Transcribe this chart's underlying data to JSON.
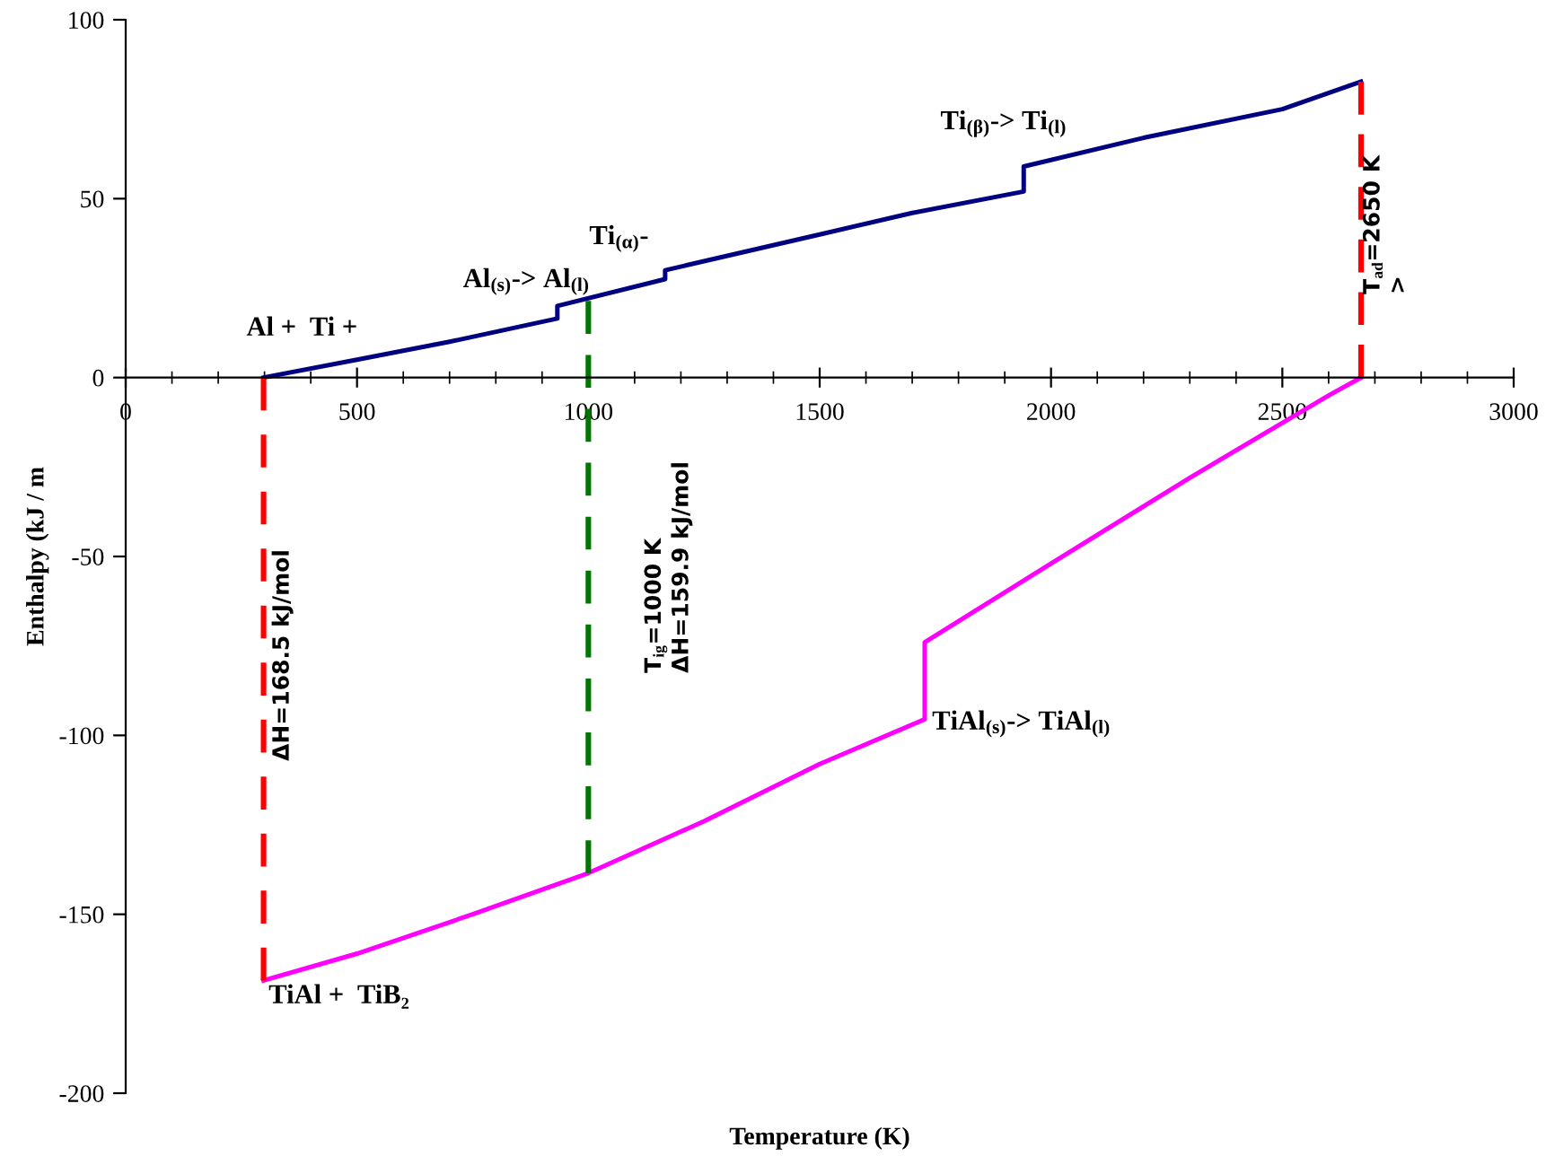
{
  "chart_data": {
    "type": "line",
    "xlabel": "Temperature (K)",
    "ylabel": "Enthalpy (kJ / m",
    "xlim": [
      0,
      3000
    ],
    "xticks": [
      0,
      500,
      1000,
      1500,
      2000,
      2500,
      3000
    ],
    "ylim": [
      -200,
      100
    ],
    "yticks": [
      -200,
      -150,
      -100,
      -50,
      0,
      50,
      100
    ],
    "grid": false,
    "legend": false,
    "series": [
      {
        "color": "#000080",
        "line_style": "solid",
        "x": [
          298,
          500,
          700,
          933,
          933,
          1166,
          1166,
          1500,
          1700,
          1941,
          1941,
          2200,
          2500,
          2670
        ],
        "values": [
          0,
          5,
          10,
          16.5,
          20,
          27.5,
          30,
          40,
          46,
          52,
          59,
          67,
          75,
          82.7
        ]
      },
      {
        "color": "#ff00ff",
        "line_style": "solid",
        "x": [
          298,
          500,
          750,
          1000,
          1250,
          1500,
          1727,
          1727,
          2000,
          2300,
          2600,
          2670
        ],
        "values": [
          -168.5,
          -161,
          -150,
          -138.5,
          -124,
          -108,
          -95.5,
          -74,
          -52,
          -28,
          -5,
          0
        ]
      },
      {
        "color": "#ff0000",
        "line_style": "dashed",
        "x": [
          298,
          298
        ],
        "values": [
          -168.5,
          0
        ]
      },
      {
        "color": "#007700",
        "line_style": "dashed",
        "x": [
          1000,
          1000
        ],
        "values": [
          21.4,
          -138.5
        ]
      },
      {
        "color": "#ff0000",
        "line_style": "dashed",
        "x": [
          2670,
          2670
        ],
        "values": [
          82.7,
          0
        ]
      }
    ],
    "annotations": [
      "Al +  Ti +",
      "Al$_{(s)}$-> Al$_{(l)}$",
      "Ti$_{(α)}$-",
      "Ti$_{(β)}$-> Ti$_{(l)}$",
      "T$_{ad}$=2650 K\n>",
      "T$_{ig}$=1000 K\nΔH=159.9 kJ/mol",
      "ΔH=168.5 kJ/mol",
      "TiAl$_{(s)}$-> TiAl$_{(l)}$",
      "TiAl +  TiB₂"
    ]
  }
}
